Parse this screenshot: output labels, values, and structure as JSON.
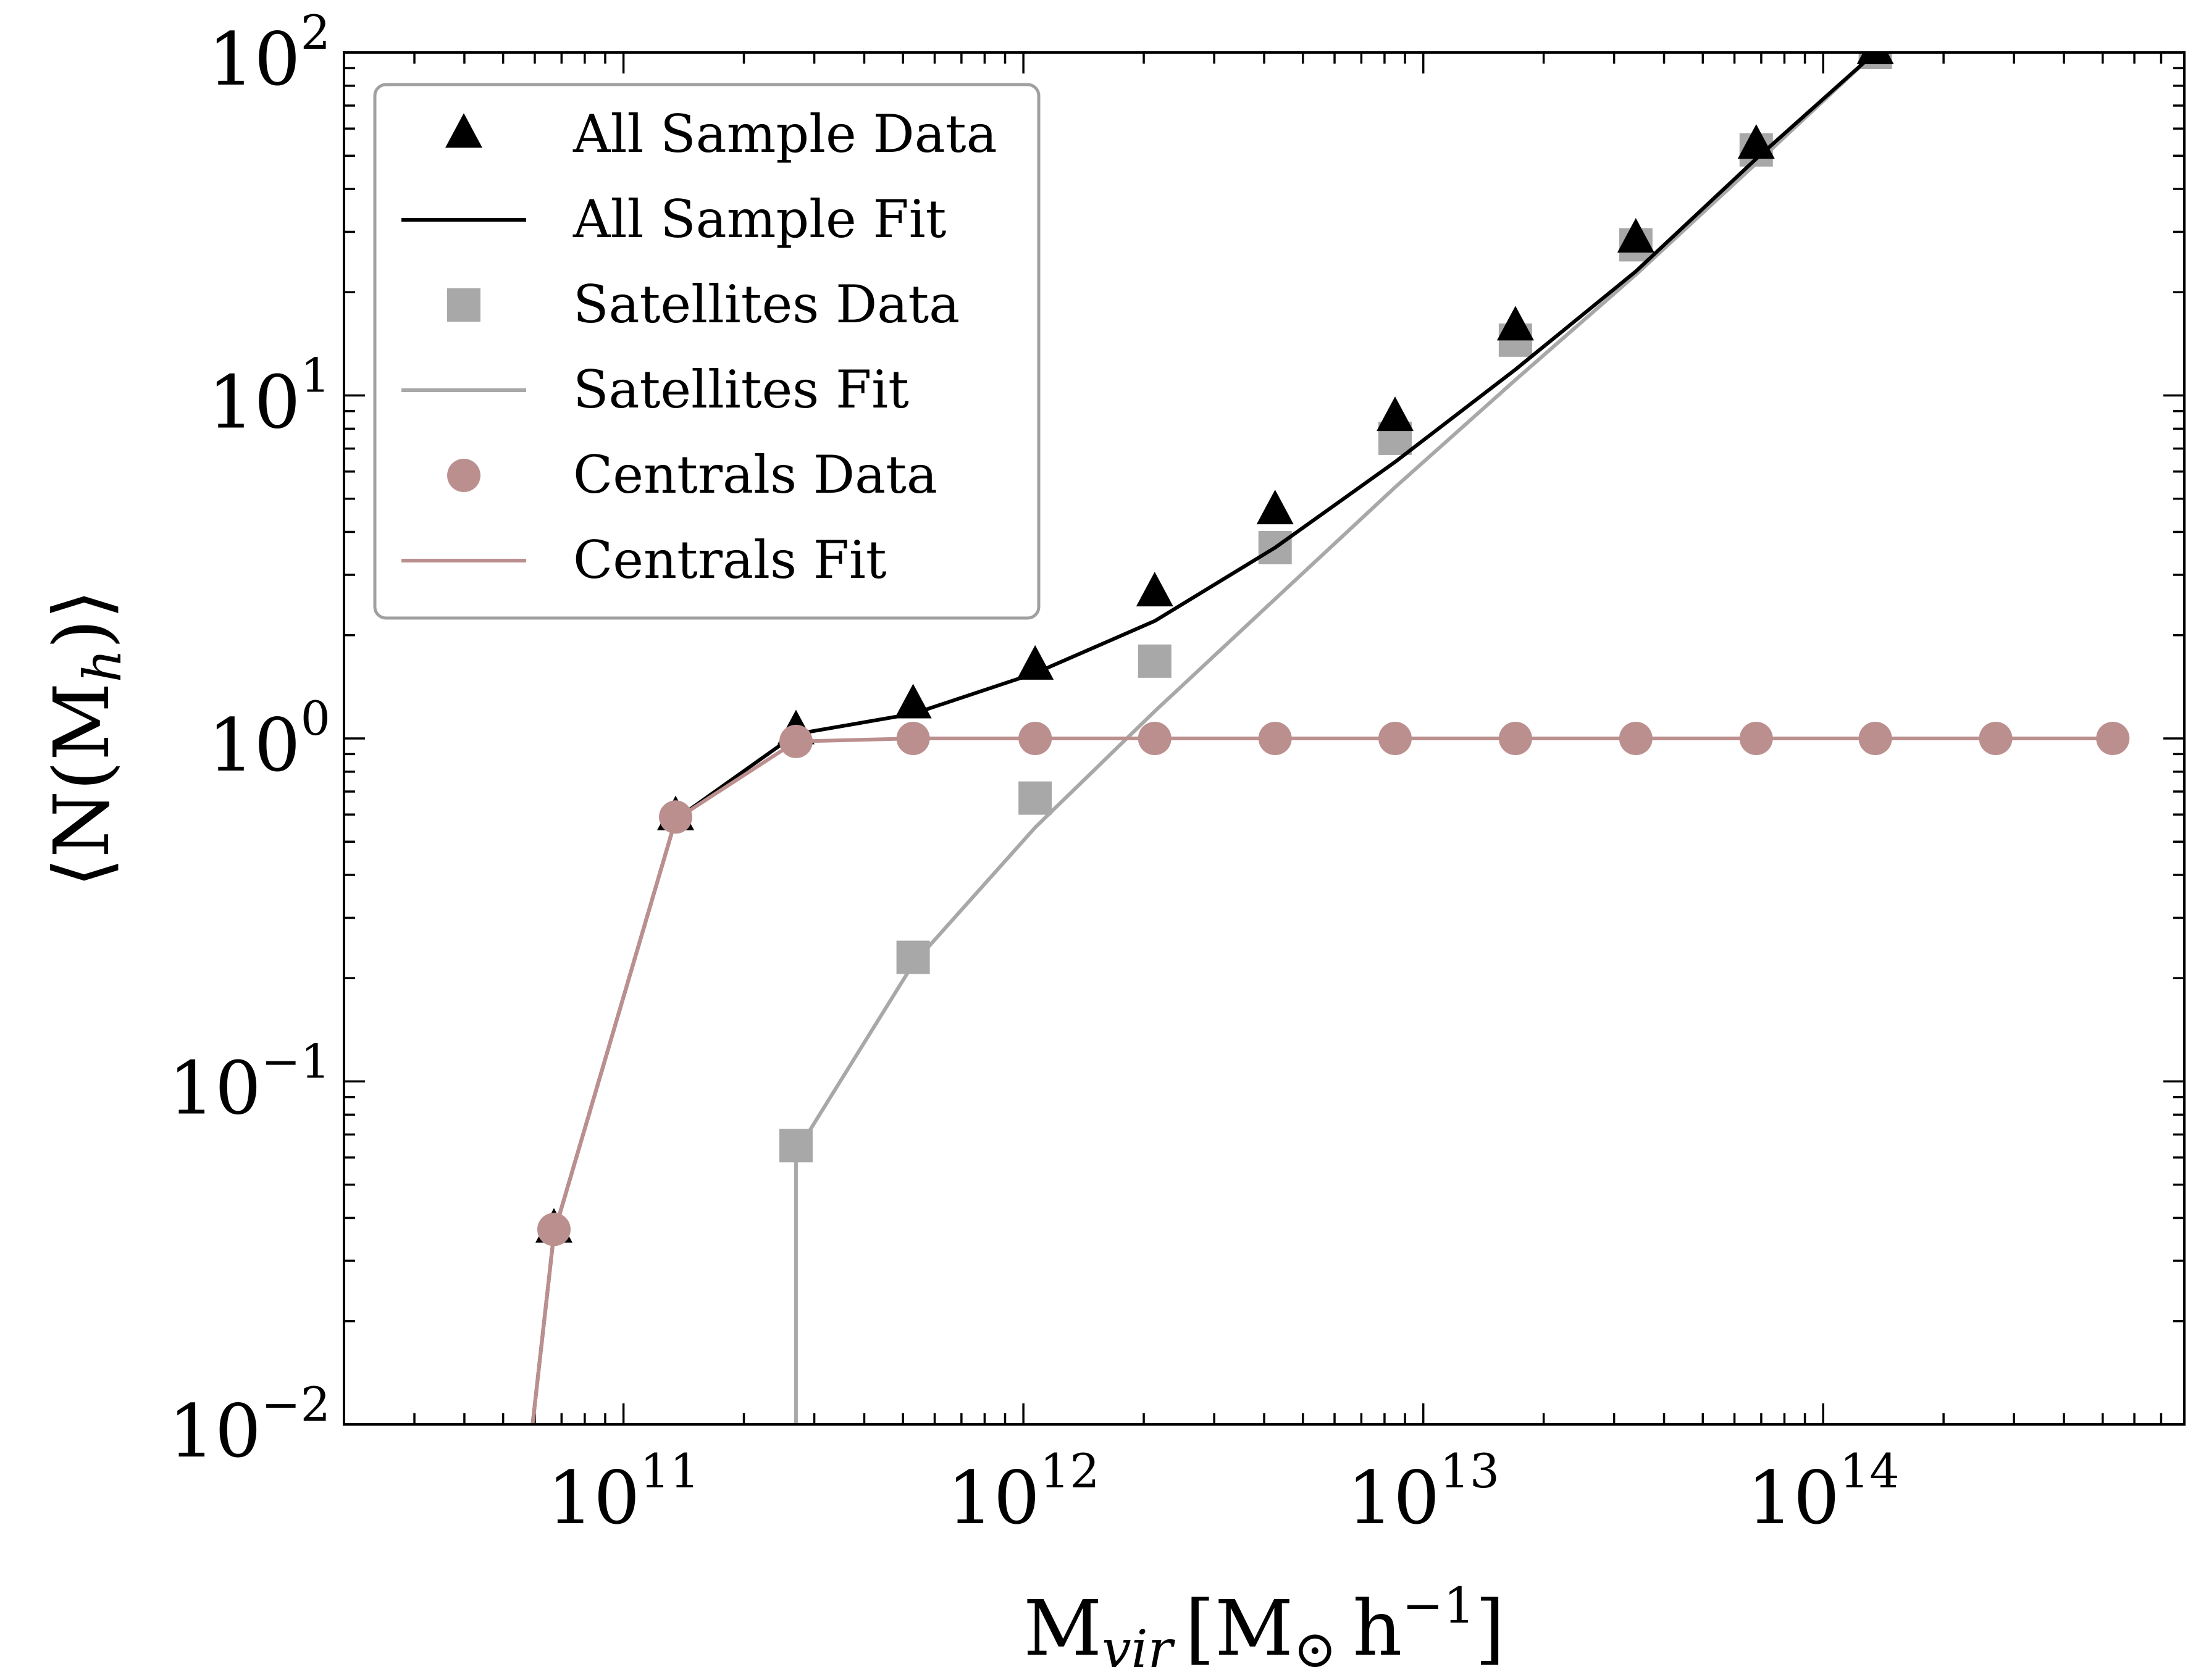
{
  "chart_data": {
    "type": "scatter",
    "title": "",
    "xlabel": {
      "base": "M",
      "sub": "vir",
      "bracket_open": "[",
      "unit": "M",
      "unit_sub": "⊙",
      "unit_h": "h",
      "unit_sup": "−1",
      "bracket_close": "]"
    },
    "ylabel": {
      "open": "⟨",
      "base": "N(M",
      "sub": "h",
      "close": ")⟩"
    },
    "x_scale": "log",
    "y_scale": "log",
    "xlim": [
      20000000000.0,
      800000000000000.0
    ],
    "ylim": [
      0.01,
      100
    ],
    "x_ticks": [
      {
        "value": 100000000000.0,
        "base": "10",
        "exp": "11"
      },
      {
        "value": 1000000000000.0,
        "base": "10",
        "exp": "12"
      },
      {
        "value": 10000000000000.0,
        "base": "10",
        "exp": "13"
      },
      {
        "value": 100000000000000.0,
        "base": "10",
        "exp": "14"
      }
    ],
    "y_ticks": [
      {
        "value": 0.01,
        "base": "10",
        "exp": "−2"
      },
      {
        "value": 0.1,
        "base": "10",
        "exp": "−1"
      },
      {
        "value": 1,
        "base": "10",
        "exp": "0"
      },
      {
        "value": 10,
        "base": "10",
        "exp": "1"
      },
      {
        "value": 100,
        "base": "10",
        "exp": "2"
      }
    ],
    "grid": false,
    "legend_position": "top-left",
    "series": [
      {
        "name": "All Sample Data",
        "kind": "marker",
        "marker": "triangle",
        "color": "#000000",
        "points": [
          [
            67000000000.0,
            0.037
          ],
          [
            135000000000.0,
            0.59
          ],
          [
            270000000000.0,
            1.05
          ],
          [
            530000000000.0,
            1.25
          ],
          [
            1070000000000.0,
            1.62
          ],
          [
            2130000000000.0,
            2.65
          ],
          [
            4260000000000.0,
            4.6
          ],
          [
            8500000000000.0,
            8.6
          ],
          [
            17000000000000.0,
            15.8
          ],
          [
            34000000000000.0,
            28.5
          ],
          [
            68000000000000.0,
            53.5
          ],
          [
            135000000000000.0,
            101
          ]
        ]
      },
      {
        "name": "All Sample Fit",
        "kind": "line",
        "color": "#000000",
        "points": [
          [
            58000000000.0,
            0.008
          ],
          [
            67000000000.0,
            0.036
          ],
          [
            135000000000.0,
            0.58
          ],
          [
            270000000000.0,
            1.03
          ],
          [
            530000000000.0,
            1.18
          ],
          [
            1070000000000.0,
            1.55
          ],
          [
            2130000000000.0,
            2.2
          ],
          [
            4260000000000.0,
            3.6
          ],
          [
            8500000000000.0,
            6.4
          ],
          [
            17000000000000.0,
            11.9
          ],
          [
            34000000000000.0,
            23.0
          ],
          [
            68000000000000.0,
            49.0
          ],
          [
            135000000000000.0,
            100
          ]
        ]
      },
      {
        "name": "Satellites Data",
        "kind": "marker",
        "marker": "square",
        "color": "#a8a8a8",
        "points": [
          [
            270000000000.0,
            0.065
          ],
          [
            530000000000.0,
            0.23
          ],
          [
            1070000000000.0,
            0.67
          ],
          [
            2130000000000.0,
            1.68
          ],
          [
            4260000000000.0,
            3.6
          ],
          [
            8500000000000.0,
            7.5
          ],
          [
            17000000000000.0,
            14.5
          ],
          [
            34000000000000.0,
            27.5
          ],
          [
            68000000000000.0,
            52
          ],
          [
            135000000000000.0,
            100
          ]
        ]
      },
      {
        "name": "Satellites Fit",
        "kind": "line",
        "color": "#a8a8a8",
        "points": [
          [
            270000000000.0,
            0.008
          ],
          [
            270000000000.0,
            0.062
          ],
          [
            530000000000.0,
            0.22
          ],
          [
            1070000000000.0,
            0.55
          ],
          [
            2130000000000.0,
            1.2
          ],
          [
            4260000000000.0,
            2.55
          ],
          [
            8500000000000.0,
            5.4
          ],
          [
            17000000000000.0,
            11.1
          ],
          [
            34000000000000.0,
            22.5
          ],
          [
            68000000000000.0,
            47.5
          ],
          [
            135000000000000.0,
            100
          ]
        ]
      },
      {
        "name": "Centrals Data",
        "kind": "marker",
        "marker": "circle",
        "color": "#bc8f8f",
        "points": [
          [
            67000000000.0,
            0.037
          ],
          [
            135000000000.0,
            0.59
          ],
          [
            270000000000.0,
            0.98
          ],
          [
            530000000000.0,
            1.0
          ],
          [
            1070000000000.0,
            1.0
          ],
          [
            2130000000000.0,
            1.0
          ],
          [
            4260000000000.0,
            1.0
          ],
          [
            8500000000000.0,
            1.0
          ],
          [
            17000000000000.0,
            1.0
          ],
          [
            34000000000000.0,
            1.0
          ],
          [
            68000000000000.0,
            1.0
          ],
          [
            135000000000000.0,
            1.0
          ],
          [
            270000000000000.0,
            1.0
          ],
          [
            530000000000000.0,
            1.0
          ]
        ]
      },
      {
        "name": "Centrals Fit",
        "kind": "line",
        "color": "#bc8f8f",
        "points": [
          [
            58000000000.0,
            0.008
          ],
          [
            67000000000.0,
            0.036
          ],
          [
            135000000000.0,
            0.58
          ],
          [
            270000000000.0,
            0.98
          ],
          [
            530000000000.0,
            1.0
          ],
          [
            530000000000000.0,
            1.0
          ]
        ]
      }
    ]
  }
}
